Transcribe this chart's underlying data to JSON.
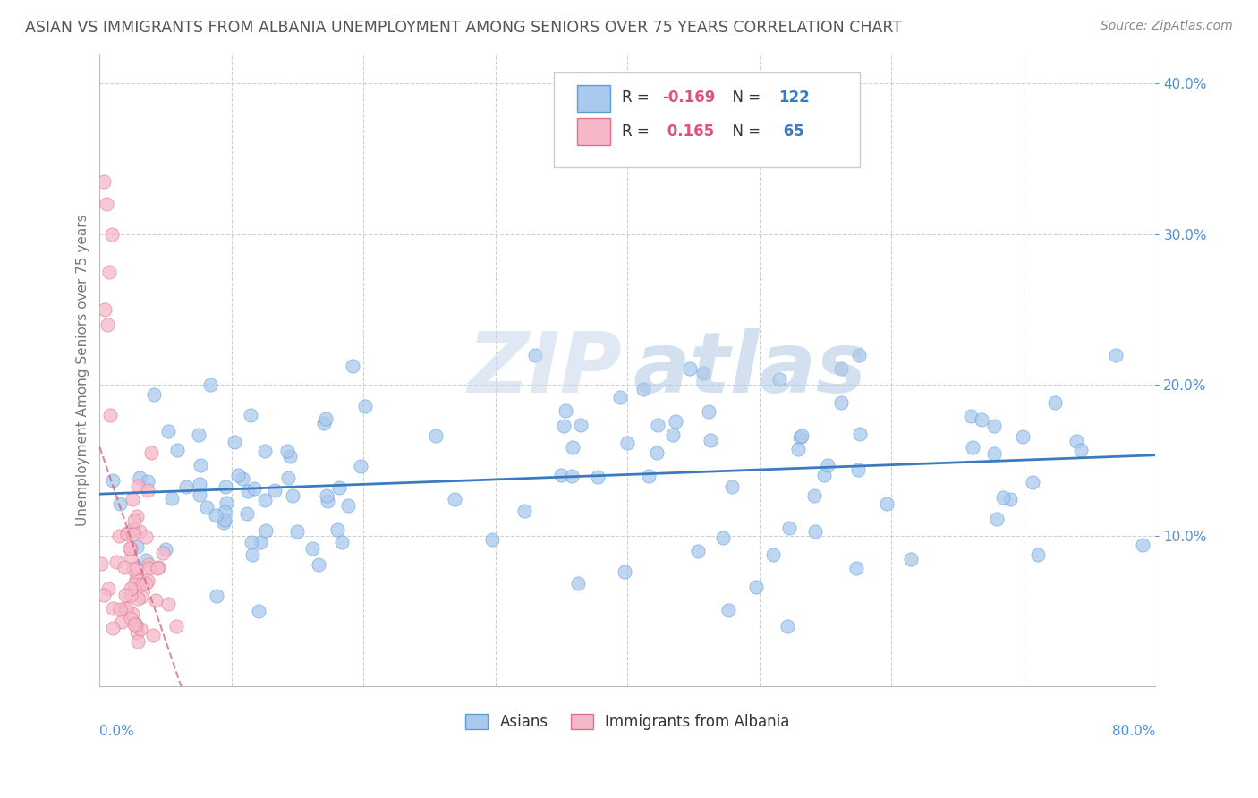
{
  "title": "ASIAN VS IMMIGRANTS FROM ALBANIA UNEMPLOYMENT AMONG SENIORS OVER 75 YEARS CORRELATION CHART",
  "source": "Source: ZipAtlas.com",
  "ylabel": "Unemployment Among Seniors over 75 years",
  "xlim": [
    0.0,
    0.8
  ],
  "ylim": [
    0.0,
    0.42
  ],
  "yticks": [
    0.1,
    0.2,
    0.3,
    0.4
  ],
  "ytick_labels": [
    "10.0%",
    "20.0%",
    "30.0%",
    "40.0%"
  ],
  "xtick_vals": [
    0.1,
    0.2,
    0.3,
    0.4,
    0.5,
    0.6,
    0.7,
    0.8
  ],
  "legend_asian_label": "Asians",
  "legend_albania_label": "Immigrants from Albania",
  "asian_color": "#aac9ee",
  "asian_edge_color": "#5a9fd4",
  "asian_line_color": "#3a7bbf",
  "albania_color": "#f5b8c8",
  "albania_edge_color": "#e07090",
  "albania_line_color": "#d05878",
  "background_color": "#ffffff",
  "grid_color": "#d0d0d0",
  "title_color": "#555555",
  "source_color": "#888888",
  "axis_label_color": "#4a90d9",
  "ylabel_color": "#777777",
  "legend_R_color": "#e05080",
  "legend_N_color": "#3a7bbf",
  "watermark_zip_color": "#c5d5e8",
  "watermark_atlas_color": "#b8cfe8"
}
